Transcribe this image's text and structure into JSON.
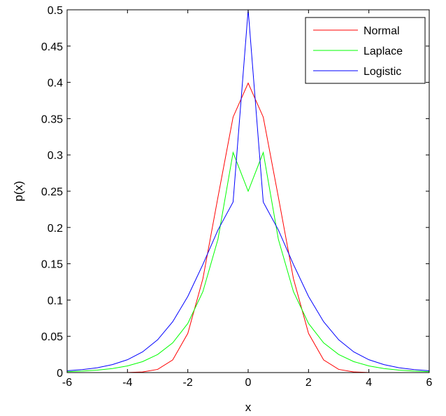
{
  "chart_data": {
    "type": "line",
    "title": "",
    "xlabel": "x",
    "ylabel": "p(x)",
    "xlim": [
      -6,
      6
    ],
    "ylim": [
      0,
      0.5
    ],
    "grid": false,
    "legend_position": "top-right",
    "xticks": [
      -6,
      -4,
      -2,
      0,
      2,
      4,
      6
    ],
    "xtick_labels": [
      "-6",
      "-4",
      "-2",
      "0",
      "2",
      "4",
      "6"
    ],
    "yticks": [
      0,
      0.05,
      0.1,
      0.15,
      0.2,
      0.25,
      0.3,
      0.35,
      0.4,
      0.45,
      0.5
    ],
    "ytick_labels": [
      "0",
      "0.05",
      "0.1",
      "0.15",
      "0.2",
      "0.25",
      "0.3",
      "0.35",
      "0.4",
      "0.45",
      "0.5"
    ],
    "x": [
      -6,
      -5.5,
      -5,
      -4.5,
      -4,
      -3.5,
      -3,
      -2.5,
      -2,
      -1.5,
      -1,
      -0.5,
      0,
      0.5,
      1,
      1.5,
      2,
      2.5,
      3,
      3.5,
      4,
      4.5,
      5,
      5.5,
      6
    ],
    "series": [
      {
        "name": "Normal",
        "color": "#ff0000",
        "values": [
          0.0,
          0.0,
          0.0,
          0.0,
          0.0001,
          0.0009,
          0.0044,
          0.0175,
          0.054,
          0.1295,
          0.242,
          0.3521,
          0.399,
          0.3521,
          0.242,
          0.1295,
          0.054,
          0.0175,
          0.0044,
          0.0009,
          0.0001,
          0.0,
          0.0,
          0.0,
          0.0
        ]
      },
      {
        "name": "Laplace",
        "color": "#00ff00",
        "values": [
          0.0012,
          0.002,
          0.0034,
          0.0056,
          0.0092,
          0.0151,
          0.0249,
          0.041,
          0.0677,
          0.1116,
          0.1839,
          0.3033,
          0.25,
          0.3033,
          0.1839,
          0.1116,
          0.0677,
          0.041,
          0.0249,
          0.0151,
          0.0092,
          0.0056,
          0.0034,
          0.002,
          0.0012
        ]
      },
      {
        "name": "Logistic",
        "color": "#0000ff",
        "values": [
          0.0025,
          0.0041,
          0.0066,
          0.011,
          0.0177,
          0.0285,
          0.0452,
          0.0701,
          0.105,
          0.1491,
          0.1966,
          0.235,
          0.5,
          0.235,
          0.1966,
          0.1491,
          0.105,
          0.0701,
          0.0452,
          0.0285,
          0.0177,
          0.011,
          0.0066,
          0.0041,
          0.0025
        ]
      }
    ]
  }
}
